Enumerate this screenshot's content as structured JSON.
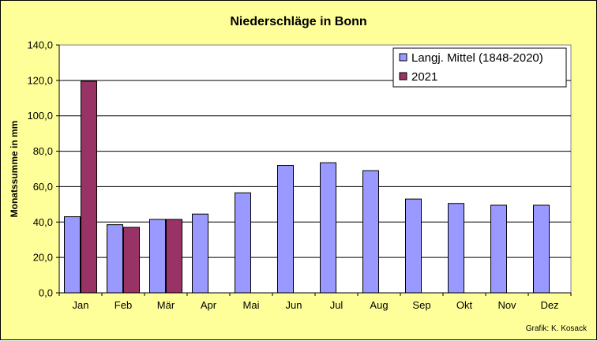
{
  "chart_data": {
    "type": "bar",
    "title": "Niederschläge in Bonn",
    "ylabel": "Monatssumme in mm",
    "xlabel": "",
    "categories": [
      "Jan",
      "Feb",
      "Mär",
      "Apr",
      "Mai",
      "Jun",
      "Jul",
      "Aug",
      "Sep",
      "Okt",
      "Nov",
      "Dez"
    ],
    "series": [
      {
        "name": "Langj. Mittel (1848-2020)",
        "color": "#9999ff",
        "values": [
          43.0,
          38.5,
          41.5,
          44.5,
          56.5,
          72.0,
          73.5,
          69.0,
          53.0,
          50.5,
          49.5,
          49.5
        ]
      },
      {
        "name": "2021",
        "color": "#993366",
        "values": [
          119.5,
          37.0,
          41.5,
          null,
          null,
          null,
          null,
          null,
          null,
          null,
          null,
          null
        ]
      }
    ],
    "ylim": [
      0,
      140
    ],
    "yticks": [
      "0,0",
      "20,0",
      "40,0",
      "60,0",
      "80,0",
      "100,0",
      "120,0",
      "140,0"
    ],
    "grid": true,
    "legend_position": "top-right",
    "credit": "Grafik:  K. Kosack"
  }
}
